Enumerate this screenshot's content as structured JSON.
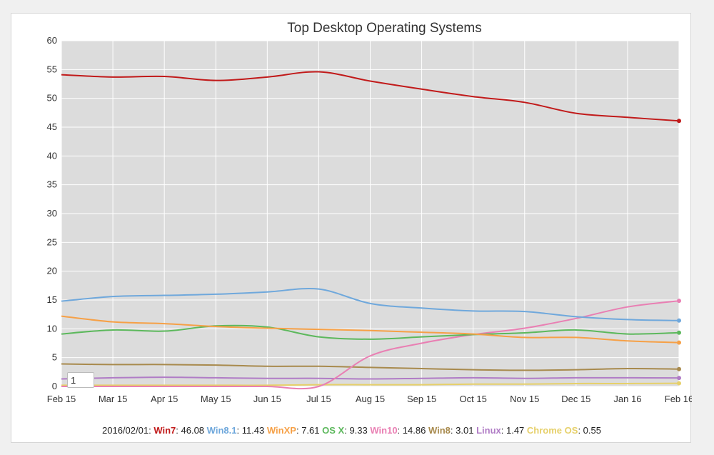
{
  "chart_data": {
    "type": "line",
    "title": "Top Desktop Operating Systems",
    "categories": [
      "Feb 15",
      "Mar 15",
      "Apr 15",
      "May 15",
      "Jun 15",
      "Jul 15",
      "Aug 15",
      "Sep 15",
      "Oct 15",
      "Nov 15",
      "Dec 15",
      "Jan 16",
      "Feb 16"
    ],
    "yticks": [
      0,
      5,
      10,
      15,
      20,
      25,
      30,
      35,
      40,
      45,
      50,
      55,
      60
    ],
    "ylim": [
      0,
      60
    ],
    "grid": true,
    "background": "#dcdcdc",
    "series": [
      {
        "name": "Win7",
        "color": "#c11a1a",
        "values": [
          54.1,
          53.7,
          53.8,
          53.1,
          53.7,
          54.6,
          53.0,
          51.6,
          50.3,
          49.3,
          47.4,
          46.7,
          46.08
        ]
      },
      {
        "name": "Win8.1",
        "color": "#6fa8dc",
        "values": [
          14.8,
          15.6,
          15.8,
          16.0,
          16.4,
          16.9,
          14.4,
          13.6,
          13.1,
          13.0,
          12.1,
          11.6,
          11.43
        ]
      },
      {
        "name": "WinXP",
        "color": "#f6a046",
        "values": [
          12.2,
          11.2,
          10.9,
          10.4,
          10.1,
          9.9,
          9.7,
          9.4,
          9.1,
          8.5,
          8.5,
          7.9,
          7.61
        ]
      },
      {
        "name": "OS X",
        "color": "#5cb85c",
        "values": [
          9.1,
          9.8,
          9.6,
          10.5,
          10.3,
          8.6,
          8.2,
          8.6,
          9.0,
          9.3,
          9.8,
          9.1,
          9.33
        ]
      },
      {
        "name": "Win10",
        "color": "#e97fb3",
        "values": [
          0,
          0,
          0,
          0,
          0,
          0,
          5.3,
          7.5,
          9.0,
          10.1,
          11.8,
          13.8,
          14.86
        ]
      },
      {
        "name": "Win8",
        "color": "#a88a4d",
        "values": [
          3.9,
          3.8,
          3.8,
          3.7,
          3.5,
          3.5,
          3.3,
          3.1,
          2.9,
          2.8,
          2.9,
          3.1,
          3.01
        ]
      },
      {
        "name": "Linux",
        "color": "#b07cc6",
        "values": [
          1.3,
          1.5,
          1.6,
          1.5,
          1.4,
          1.4,
          1.3,
          1.4,
          1.5,
          1.4,
          1.5,
          1.5,
          1.47
        ]
      },
      {
        "name": "Chrome OS",
        "color": "#e6d06a",
        "values": [
          0.2,
          0.2,
          0.2,
          0.2,
          0.2,
          0.3,
          0.3,
          0.3,
          0.4,
          0.4,
          0.5,
          0.5,
          0.55
        ]
      }
    ]
  },
  "legend": {
    "date": "2016/02/01",
    "items": [
      {
        "name": "Win7",
        "value": "46.08",
        "color": "#c11a1a"
      },
      {
        "name": "Win8.1",
        "value": "11.43",
        "color": "#6fa8dc"
      },
      {
        "name": "WinXP",
        "value": "7.61",
        "color": "#f6a046"
      },
      {
        "name": "OS X",
        "value": "9.33",
        "color": "#5cb85c"
      },
      {
        "name": "Win10",
        "value": "14.86",
        "color": "#e97fb3"
      },
      {
        "name": "Win8",
        "value": "3.01",
        "color": "#a88a4d"
      },
      {
        "name": "Linux",
        "value": "1.47",
        "color": "#b07cc6"
      },
      {
        "name": "Chrome OS",
        "value": "0.55",
        "color": "#e6d06a"
      }
    ]
  },
  "tooltip": {
    "text": "1"
  }
}
